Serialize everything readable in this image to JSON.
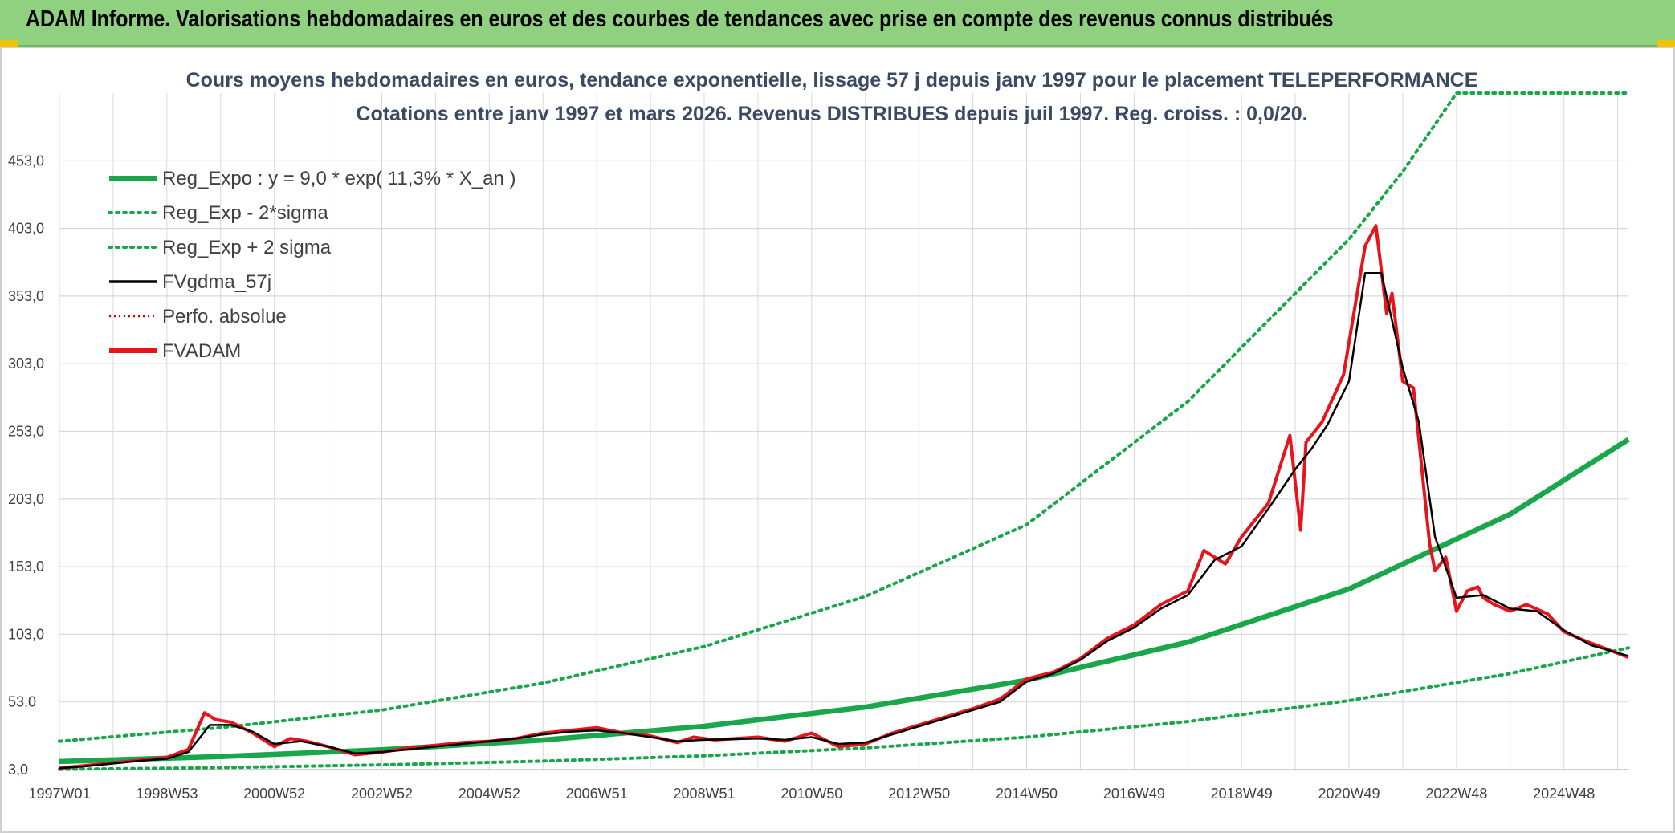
{
  "header": {
    "title": "ADAM Informe. Valorisations hebdomadaires en euros et des courbes de tendances avec prise en compte des revenus connus distribués"
  },
  "chart_data": {
    "type": "line",
    "title": "Cours moyens hebdomadaires en euros, tendance exponentielle, lissage 57 j depuis janv 1997 pour le placement TELEPERFORMANCE",
    "subtitle": "Cotations entre janv 1997 et mars 2026. Revenus DISTRIBUES depuis juil 1997. Reg. croiss. : 0,0/20.",
    "x_range": [
      1997.0,
      2026.2
    ],
    "ylim": [
      3,
      503
    ],
    "y_ticks": [
      "3,0",
      "53,0",
      "103,0",
      "153,0",
      "203,0",
      "253,0",
      "303,0",
      "353,0",
      "403,0",
      "453,0"
    ],
    "y_tick_values": [
      3,
      53,
      103,
      153,
      203,
      253,
      303,
      353,
      403,
      453
    ],
    "x_ticks": [
      "1997W01",
      "1998W53",
      "2000W52",
      "2002W52",
      "2004W52",
      "2006W51",
      "2008W51",
      "2010W50",
      "2012W50",
      "2014W50",
      "2016W49",
      "2018W49",
      "2020W49",
      "2022W48",
      "2024W48"
    ],
    "x_tick_values": [
      1997.0,
      1999.0,
      2001.0,
      2003.0,
      2005.0,
      2007.0,
      2009.0,
      2011.0,
      2013.0,
      2015.0,
      2017.0,
      2019.0,
      2021.0,
      2023.0,
      2025.0
    ],
    "colors": {
      "reg": "#1aa64a",
      "band": "#1aa64a",
      "smooth": "#000000",
      "perfo": "#cc0000",
      "price": "#e8141c",
      "grid": "#d9d9d9"
    },
    "legend": [
      {
        "label": "Reg_Expo : y = 9,0 * exp( 11,3% *  X_an )",
        "style": "solid-thick",
        "color": "#1aa64a"
      },
      {
        "label": "Reg_Exp - 2*sigma",
        "style": "dotted",
        "color": "#1aa64a"
      },
      {
        "label": "Reg_Exp + 2 sigma",
        "style": "dotted",
        "color": "#1aa64a"
      },
      {
        "label": "FVgdma_57j",
        "style": "solid",
        "color": "#000000"
      },
      {
        "label": "Perfo. absolue",
        "style": "dotted-thin",
        "color": "#cc0000"
      },
      {
        "label": "FVADAM",
        "style": "solid-thick",
        "color": "#e8141c"
      }
    ],
    "series": [
      {
        "name": "Reg_Expo",
        "x": [
          1997.0,
          2000.0,
          2003.0,
          2006.0,
          2009.0,
          2012.0,
          2015.0,
          2018.0,
          2021.0,
          2024.0,
          2026.2
        ],
        "values": [
          9.0,
          12.6,
          17.7,
          24.9,
          35.0,
          49.2,
          69.1,
          97.2,
          136.5,
          191.8,
          247.0
        ]
      },
      {
        "name": "Reg_Exp - 2*sigma",
        "x": [
          1997.0,
          2000.0,
          2003.0,
          2006.0,
          2009.0,
          2012.0,
          2015.0,
          2018.0,
          2021.0,
          2024.0,
          2026.2
        ],
        "values": [
          3.2,
          4.5,
          6.5,
          9.3,
          13.2,
          19.0,
          27.0,
          38.5,
          54.0,
          74.0,
          93.0
        ]
      },
      {
        "name": "Reg_Exp + 2 sigma",
        "x": [
          1997.0,
          2000.0,
          2003.0,
          2006.0,
          2009.0,
          2012.0,
          2015.0,
          2018.0,
          2021.0,
          2022.0,
          2023.0,
          2024.0,
          2026.2
        ],
        "values": [
          24.0,
          34.0,
          47.0,
          67.0,
          94.0,
          131.0,
          184.0,
          275.0,
          395.0,
          445.0,
          503.0,
          503.0,
          503.0
        ]
      },
      {
        "name": "FVADAM",
        "x": [
          1997.0,
          1997.5,
          1998.0,
          1998.5,
          1999.0,
          1999.4,
          1999.7,
          1999.9,
          2000.2,
          2000.6,
          2001.0,
          2001.3,
          2001.6,
          2002.0,
          2002.5,
          2003.0,
          2003.5,
          2004.0,
          2004.5,
          2005.0,
          2005.5,
          2006.0,
          2006.5,
          2007.0,
          2007.5,
          2008.0,
          2008.5,
          2008.8,
          2009.2,
          2009.6,
          2010.0,
          2010.5,
          2011.0,
          2011.5,
          2012.0,
          2012.5,
          2013.0,
          2013.5,
          2014.0,
          2014.5,
          2015.0,
          2015.5,
          2016.0,
          2016.5,
          2017.0,
          2017.5,
          2018.0,
          2018.3,
          2018.7,
          2019.0,
          2019.5,
          2019.9,
          2020.1,
          2020.2,
          2020.5,
          2020.9,
          2021.3,
          2021.5,
          2021.7,
          2021.8,
          2022.0,
          2022.2,
          2022.5,
          2022.6,
          2022.8,
          2023.0,
          2023.2,
          2023.4,
          2023.5,
          2023.7,
          2024.0,
          2024.3,
          2024.7,
          2025.0,
          2025.4,
          2025.8,
          2026.2
        ],
        "values": [
          4.0,
          6.0,
          8.0,
          10.0,
          12.0,
          18.0,
          45.0,
          40.0,
          38.0,
          30.0,
          20.0,
          26.0,
          24.0,
          20.0,
          14.0,
          16.0,
          19.0,
          21.0,
          23.0,
          24.0,
          26.0,
          30.0,
          32.0,
          34.0,
          30.0,
          28.0,
          23.0,
          27.0,
          25.0,
          26.0,
          27.0,
          24.0,
          30.0,
          20.0,
          22.0,
          30.0,
          36.0,
          42.0,
          48.0,
          55.0,
          70.0,
          75.0,
          85.0,
          100.0,
          110.0,
          125.0,
          135.0,
          165.0,
          155.0,
          175.0,
          200.0,
          250.0,
          180.0,
          245.0,
          260.0,
          295.0,
          390.0,
          405.0,
          340.0,
          355.0,
          290.0,
          285.0,
          170.0,
          150.0,
          160.0,
          120.0,
          135.0,
          138.0,
          130.0,
          125.0,
          120.0,
          125.0,
          118.0,
          105.0,
          98.0,
          92.0,
          86.0
        ]
      },
      {
        "name": "FVgdma_57j",
        "x": [
          1997.0,
          1997.5,
          1998.0,
          1998.5,
          1999.0,
          1999.4,
          1999.8,
          2000.2,
          2000.6,
          2001.0,
          2001.5,
          2002.0,
          2002.5,
          2003.0,
          2003.5,
          2004.0,
          2004.5,
          2005.0,
          2005.5,
          2006.0,
          2006.5,
          2007.0,
          2007.5,
          2008.0,
          2008.5,
          2009.0,
          2009.5,
          2010.0,
          2010.5,
          2011.0,
          2011.5,
          2012.0,
          2012.5,
          2013.0,
          2013.5,
          2014.0,
          2014.5,
          2015.0,
          2015.5,
          2016.0,
          2016.5,
          2017.0,
          2017.5,
          2018.0,
          2018.5,
          2019.0,
          2019.5,
          2020.0,
          2020.3,
          2020.6,
          2021.0,
          2021.3,
          2021.6,
          2022.0,
          2022.3,
          2022.6,
          2023.0,
          2023.5,
          2024.0,
          2024.5,
          2025.0,
          2025.5,
          2026.2
        ],
        "values": [
          4.0,
          5.5,
          7.5,
          9.5,
          11.0,
          16.0,
          36.0,
          36.0,
          31.0,
          22.0,
          24.0,
          20.0,
          15.0,
          16.0,
          18.0,
          20.0,
          22.0,
          24.0,
          26.0,
          29.0,
          31.0,
          32.0,
          30.0,
          27.0,
          24.0,
          25.0,
          25.5,
          26.0,
          25.0,
          27.0,
          22.0,
          23.0,
          29.0,
          35.0,
          41.0,
          47.0,
          53.0,
          68.0,
          74.0,
          84.0,
          98.0,
          108.0,
          122.0,
          132.0,
          158.0,
          168.0,
          196.0,
          225.0,
          240.0,
          258.0,
          290.0,
          370.0,
          370.0,
          300.0,
          260.0,
          175.0,
          130.0,
          132.0,
          122.0,
          120.0,
          106.0,
          95.0,
          87.0
        ]
      }
    ]
  }
}
